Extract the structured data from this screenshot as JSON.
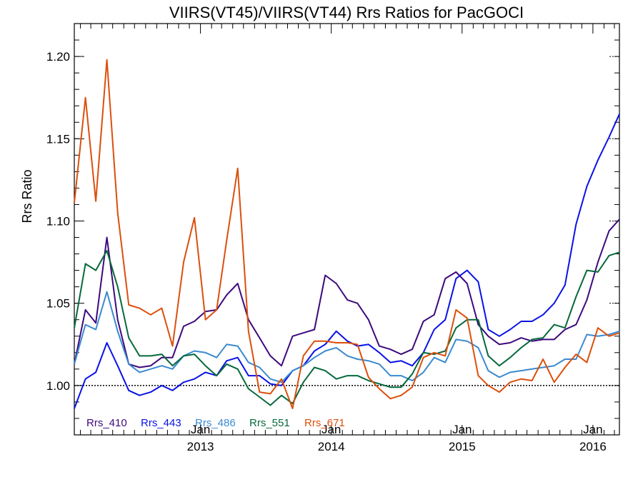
{
  "chart_data": {
    "type": "line",
    "title": "VIIRS(VT45)/VIIRS(VT44)  Rrs Ratios for PacGOCI",
    "xlabel": "",
    "ylabel": "Rrs Ratio",
    "xlim": [
      "2012-01-15",
      "2016-03-15"
    ],
    "ylim": [
      0.97,
      1.22
    ],
    "yticks": [
      "1.00",
      "1.05",
      "1.10",
      "1.15",
      "1.20"
    ],
    "ytick_values": [
      1.0,
      1.05,
      1.1,
      1.15,
      1.2
    ],
    "xticks": [
      {
        "date": "2013-01-01",
        "month": "Jan",
        "year": "2013"
      },
      {
        "date": "2014-01-01",
        "month": "Jan",
        "year": "2014"
      },
      {
        "date": "2015-01-01",
        "month": "Jan",
        "year": "2015"
      },
      {
        "date": "2016-01-01",
        "month": "Jan",
        "year": "2016"
      }
    ],
    "reference_line": 1.0,
    "grid": false,
    "legend_position": "bottom-left",
    "x": [
      "2012-01",
      "2012-02",
      "2012-03",
      "2012-04",
      "2012-05",
      "2012-06",
      "2012-07",
      "2012-08",
      "2012-09",
      "2012-10",
      "2012-11",
      "2012-12",
      "2013-01",
      "2013-02",
      "2013-03",
      "2013-04",
      "2013-05",
      "2013-06",
      "2013-07",
      "2013-08",
      "2013-09",
      "2013-10",
      "2013-11",
      "2013-12",
      "2014-01",
      "2014-02",
      "2014-03",
      "2014-04",
      "2014-05",
      "2014-06",
      "2014-07",
      "2014-08",
      "2014-09",
      "2014-10",
      "2014-11",
      "2014-12",
      "2015-01",
      "2015-02",
      "2015-03",
      "2015-04",
      "2015-05",
      "2015-06",
      "2015-07",
      "2015-08",
      "2015-09",
      "2015-10",
      "2015-11",
      "2015-12",
      "2016-01",
      "2016-02",
      "2016-03"
    ],
    "series": [
      {
        "name": "Rrs_410",
        "color": "#3d0a7d",
        "values": [
          1.013,
          1.046,
          1.038,
          1.09,
          1.04,
          1.013,
          1.011,
          1.012,
          1.017,
          1.017,
          1.036,
          1.039,
          1.045,
          1.046,
          1.055,
          1.062,
          1.04,
          1.029,
          1.018,
          1.012,
          1.03,
          1.032,
          1.034,
          1.067,
          1.062,
          1.052,
          1.05,
          1.04,
          1.024,
          1.022,
          1.019,
          1.022,
          1.039,
          1.043,
          1.065,
          1.069,
          1.062,
          1.037,
          1.03,
          1.025,
          1.026,
          1.029,
          1.027,
          1.028,
          1.028,
          1.034,
          1.037,
          1.052,
          1.075,
          1.094,
          1.101
        ]
      },
      {
        "name": "Rrs_443",
        "color": "#0a12e6",
        "values": [
          0.986,
          1.004,
          1.008,
          1.026,
          1.012,
          0.997,
          0.994,
          0.996,
          1.0,
          0.997,
          1.002,
          1.004,
          1.008,
          1.006,
          1.015,
          1.017,
          1.006,
          1.006,
          1.001,
          1.0,
          1.009,
          1.012,
          1.021,
          1.025,
          1.033,
          1.027,
          1.024,
          1.025,
          1.02,
          1.014,
          1.015,
          1.012,
          1.02,
          1.034,
          1.04,
          1.065,
          1.07,
          1.063,
          1.034,
          1.03,
          1.034,
          1.039,
          1.039,
          1.043,
          1.05,
          1.061,
          1.098,
          1.121,
          1.137,
          1.151,
          1.165
        ]
      },
      {
        "name": "Rrs_486",
        "color": "#3a8ad0",
        "values": [
          1.013,
          1.037,
          1.034,
          1.057,
          1.033,
          1.013,
          1.008,
          1.01,
          1.012,
          1.01,
          1.018,
          1.021,
          1.02,
          1.017,
          1.025,
          1.024,
          1.014,
          1.011,
          1.004,
          1.002,
          1.009,
          1.012,
          1.017,
          1.021,
          1.023,
          1.018,
          1.016,
          1.015,
          1.013,
          1.006,
          1.006,
          1.003,
          1.008,
          1.017,
          1.014,
          1.028,
          1.027,
          1.023,
          1.009,
          1.005,
          1.008,
          1.009,
          1.01,
          1.011,
          1.012,
          1.016,
          1.016,
          1.031,
          1.03,
          1.031,
          1.033
        ]
      },
      {
        "name": "Rrs_551",
        "color": "#06693c",
        "values": [
          1.035,
          1.074,
          1.07,
          1.082,
          1.06,
          1.029,
          1.018,
          1.018,
          1.019,
          1.012,
          1.018,
          1.019,
          1.012,
          1.006,
          1.013,
          1.01,
          0.998,
          0.993,
          0.988,
          0.994,
          0.989,
          1.002,
          1.011,
          1.009,
          1.004,
          1.006,
          1.006,
          1.003,
          1.001,
          0.999,
          0.999,
          1.007,
          1.02,
          1.019,
          1.021,
          1.035,
          1.04,
          1.04,
          1.018,
          1.012,
          1.017,
          1.023,
          1.028,
          1.029,
          1.037,
          1.035,
          1.054,
          1.07,
          1.069,
          1.079,
          1.081
        ]
      },
      {
        "name": "Rrs_671",
        "color": "#dc4f0c",
        "values": [
          1.111,
          1.175,
          1.112,
          1.198,
          1.105,
          1.049,
          1.047,
          1.043,
          1.047,
          1.024,
          1.075,
          1.102,
          1.04,
          1.046,
          1.088,
          1.132,
          1.033,
          0.996,
          0.995,
          1.004,
          0.986,
          1.018,
          1.027,
          1.027,
          1.026,
          1.026,
          1.025,
          1.005,
          0.998,
          0.992,
          0.994,
          0.999,
          1.017,
          1.02,
          1.018,
          1.046,
          1.041,
          1.006,
          1.0,
          0.996,
          1.002,
          1.004,
          1.003,
          1.016,
          1.002,
          1.011,
          1.019,
          1.014,
          1.035,
          1.03,
          1.032
        ]
      }
    ]
  }
}
